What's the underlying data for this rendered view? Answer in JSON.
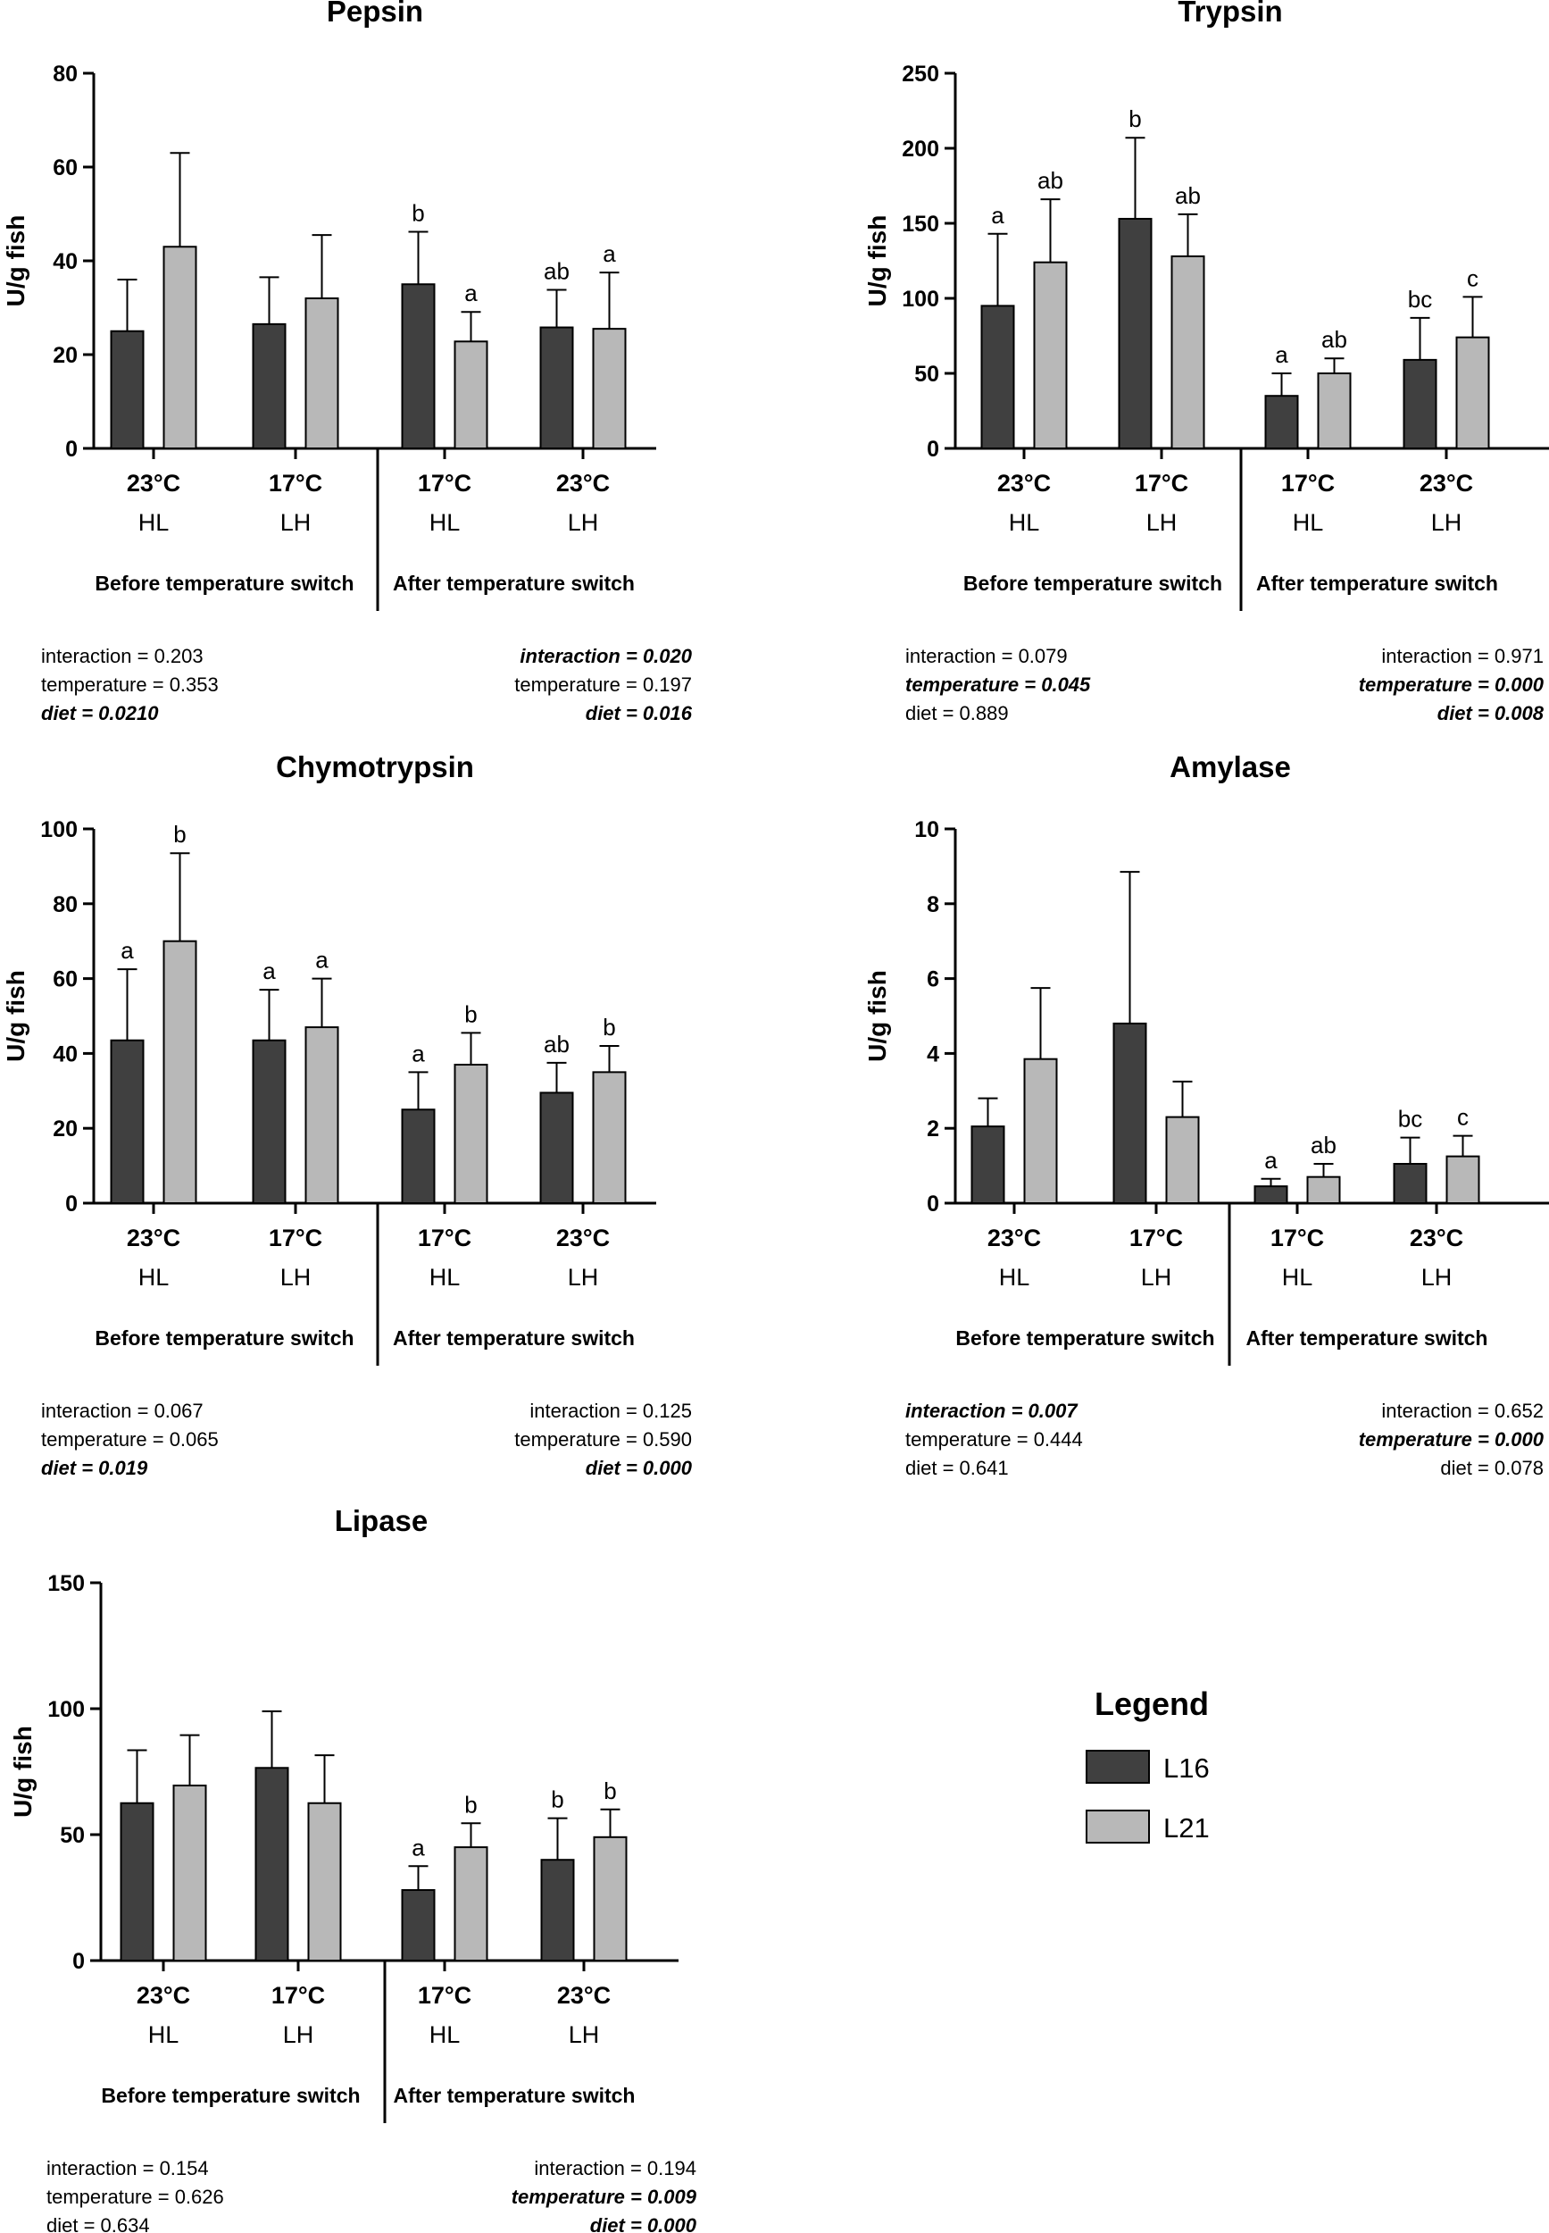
{
  "chart_data": [
    {
      "type": "bar",
      "title": "Pepsin",
      "ylabel": "U/g fish",
      "ylim": [
        0,
        80
      ],
      "yticks": [
        0,
        20,
        40,
        60,
        80
      ],
      "groups": [
        {
          "temp": "23°C",
          "diet": "HL",
          "values": [
            25,
            43
          ],
          "errors": [
            11,
            20
          ],
          "letters": [
            "",
            ""
          ]
        },
        {
          "temp": "17°C",
          "diet": "LH",
          "values": [
            26.5,
            32
          ],
          "errors": [
            10,
            13.5
          ],
          "letters": [
            "",
            ""
          ]
        },
        {
          "temp": "17°C",
          "diet": "HL",
          "values": [
            35,
            22.8
          ],
          "errors": [
            11.2,
            6.3
          ],
          "letters": [
            "b",
            "a"
          ]
        },
        {
          "temp": "23°C",
          "diet": "LH",
          "values": [
            25.8,
            25.5
          ],
          "errors": [
            8,
            12
          ],
          "letters": [
            "ab",
            "a"
          ]
        }
      ],
      "phases": [
        "Before temperature switch",
        "After temperature switch"
      ],
      "stats_left": [
        {
          "text": "interaction = 0.203",
          "sig": false
        },
        {
          "text": "temperature = 0.353",
          "sig": false
        },
        {
          "text": "diet = 0.0210",
          "sig": true
        }
      ],
      "stats_right": [
        {
          "text": "interaction = 0.020",
          "sig": true
        },
        {
          "text": "temperature = 0.197",
          "sig": false
        },
        {
          "text": "diet = 0.016",
          "sig": true
        }
      ]
    },
    {
      "type": "bar",
      "title": "Trypsin",
      "ylabel": "U/g fish",
      "ylim": [
        0,
        250
      ],
      "yticks": [
        0,
        50,
        100,
        150,
        200,
        250
      ],
      "groups": [
        {
          "temp": "23°C",
          "diet": "HL",
          "values": [
            95,
            124
          ],
          "errors": [
            48,
            42
          ],
          "letters": [
            "a",
            "ab"
          ]
        },
        {
          "temp": "17°C",
          "diet": "LH",
          "values": [
            153,
            128
          ],
          "errors": [
            54,
            28
          ],
          "letters": [
            "b",
            "ab"
          ]
        },
        {
          "temp": "17°C",
          "diet": "HL",
          "values": [
            35,
            50
          ],
          "errors": [
            15,
            10
          ],
          "letters": [
            "a",
            "ab"
          ]
        },
        {
          "temp": "23°C",
          "diet": "LH",
          "values": [
            59,
            74
          ],
          "errors": [
            28,
            27
          ],
          "letters": [
            "bc",
            "c"
          ]
        }
      ],
      "phases": [
        "Before temperature switch",
        "After temperature switch"
      ],
      "stats_left": [
        {
          "text": "interaction = 0.079",
          "sig": false
        },
        {
          "text": "temperature = 0.045",
          "sig": true
        },
        {
          "text": "diet = 0.889",
          "sig": false
        }
      ],
      "stats_right": [
        {
          "text": "interaction = 0.971",
          "sig": false
        },
        {
          "text": "temperature = 0.000",
          "sig": true
        },
        {
          "text": "diet = 0.008",
          "sig": true
        }
      ]
    },
    {
      "type": "bar",
      "title": "Chymotrypsin",
      "ylabel": "U/g fish",
      "ylim": [
        0,
        100
      ],
      "yticks": [
        0,
        20,
        40,
        60,
        80,
        100
      ],
      "groups": [
        {
          "temp": "23°C",
          "diet": "HL",
          "values": [
            43.5,
            70
          ],
          "errors": [
            19,
            23.5
          ],
          "letters": [
            "a",
            "b"
          ]
        },
        {
          "temp": "17°C",
          "diet": "LH",
          "values": [
            43.5,
            47
          ],
          "errors": [
            13.5,
            13
          ],
          "letters": [
            "a",
            "a"
          ]
        },
        {
          "temp": "17°C",
          "diet": "HL",
          "values": [
            25,
            37
          ],
          "errors": [
            10,
            8.5
          ],
          "letters": [
            "a",
            "b"
          ]
        },
        {
          "temp": "23°C",
          "diet": "LH",
          "values": [
            29.5,
            35
          ],
          "errors": [
            8,
            7
          ],
          "letters": [
            "ab",
            "b"
          ]
        }
      ],
      "phases": [
        "Before temperature switch",
        "After temperature switch"
      ],
      "stats_left": [
        {
          "text": "interaction = 0.067",
          "sig": false
        },
        {
          "text": "temperature = 0.065",
          "sig": false
        },
        {
          "text": "diet = 0.019",
          "sig": true
        }
      ],
      "stats_right": [
        {
          "text": "interaction = 0.125",
          "sig": false
        },
        {
          "text": "temperature = 0.590",
          "sig": false
        },
        {
          "text": "diet = 0.000",
          "sig": true
        }
      ]
    },
    {
      "type": "bar",
      "title": "Amylase",
      "ylabel": "U/g fish",
      "ylim": [
        0,
        10
      ],
      "yticks": [
        0,
        2,
        4,
        6,
        8,
        10
      ],
      "groups": [
        {
          "temp": "23°C",
          "diet": "HL",
          "values": [
            2.05,
            3.85
          ],
          "errors": [
            0.75,
            1.9
          ],
          "letters": [
            "",
            ""
          ]
        },
        {
          "temp": "17°C",
          "diet": "LH",
          "values": [
            4.8,
            2.3
          ],
          "errors": [
            4.05,
            0.95
          ],
          "letters": [
            "",
            ""
          ]
        },
        {
          "temp": "17°C",
          "diet": "HL",
          "values": [
            0.45,
            0.7
          ],
          "errors": [
            0.2,
            0.35
          ],
          "letters": [
            "a",
            "ab"
          ]
        },
        {
          "temp": "23°C",
          "diet": "LH",
          "values": [
            1.05,
            1.25
          ],
          "errors": [
            0.7,
            0.55
          ],
          "letters": [
            "bc",
            "c"
          ]
        }
      ],
      "phases": [
        "Before temperature switch",
        "After temperature switch"
      ],
      "stats_left": [
        {
          "text": "interaction = 0.007",
          "sig": true
        },
        {
          "text": "temperature = 0.444",
          "sig": false
        },
        {
          "text": "diet = 0.641",
          "sig": false
        }
      ],
      "stats_right": [
        {
          "text": "interaction = 0.652",
          "sig": false
        },
        {
          "text": "temperature = 0.000",
          "sig": true
        },
        {
          "text": "diet = 0.078",
          "sig": false
        }
      ]
    },
    {
      "type": "bar",
      "title": "Lipase",
      "ylabel": "U/g fish",
      "ylim": [
        0,
        150
      ],
      "yticks": [
        0,
        50,
        100,
        150
      ],
      "groups": [
        {
          "temp": "23°C",
          "diet": "HL",
          "values": [
            62.5,
            69.5
          ],
          "errors": [
            21,
            20
          ],
          "letters": [
            "",
            ""
          ]
        },
        {
          "temp": "17°C",
          "diet": "LH",
          "values": [
            76.5,
            62.5
          ],
          "errors": [
            22.5,
            19
          ],
          "letters": [
            "",
            ""
          ]
        },
        {
          "temp": "17°C",
          "diet": "HL",
          "values": [
            28,
            45
          ],
          "errors": [
            9.5,
            9.5
          ],
          "letters": [
            "a",
            "b"
          ]
        },
        {
          "temp": "23°C",
          "diet": "LH",
          "values": [
            40,
            49
          ],
          "errors": [
            16.5,
            11
          ],
          "letters": [
            "b",
            "b"
          ]
        }
      ],
      "phases": [
        "Before temperature switch",
        "After temperature switch"
      ],
      "stats_left": [
        {
          "text": "interaction = 0.154",
          "sig": false
        },
        {
          "text": "temperature = 0.626",
          "sig": false
        },
        {
          "text": "diet = 0.634",
          "sig": false
        }
      ],
      "stats_right": [
        {
          "text": "interaction = 0.194",
          "sig": false
        },
        {
          "text": "temperature = 0.009",
          "sig": true
        },
        {
          "text": "diet = 0.000",
          "sig": true
        }
      ]
    }
  ],
  "legend": {
    "title": "Legend",
    "items": [
      {
        "label": "L16",
        "color": "#404040"
      },
      {
        "label": "L21",
        "color": "#b8b8b8"
      }
    ]
  }
}
